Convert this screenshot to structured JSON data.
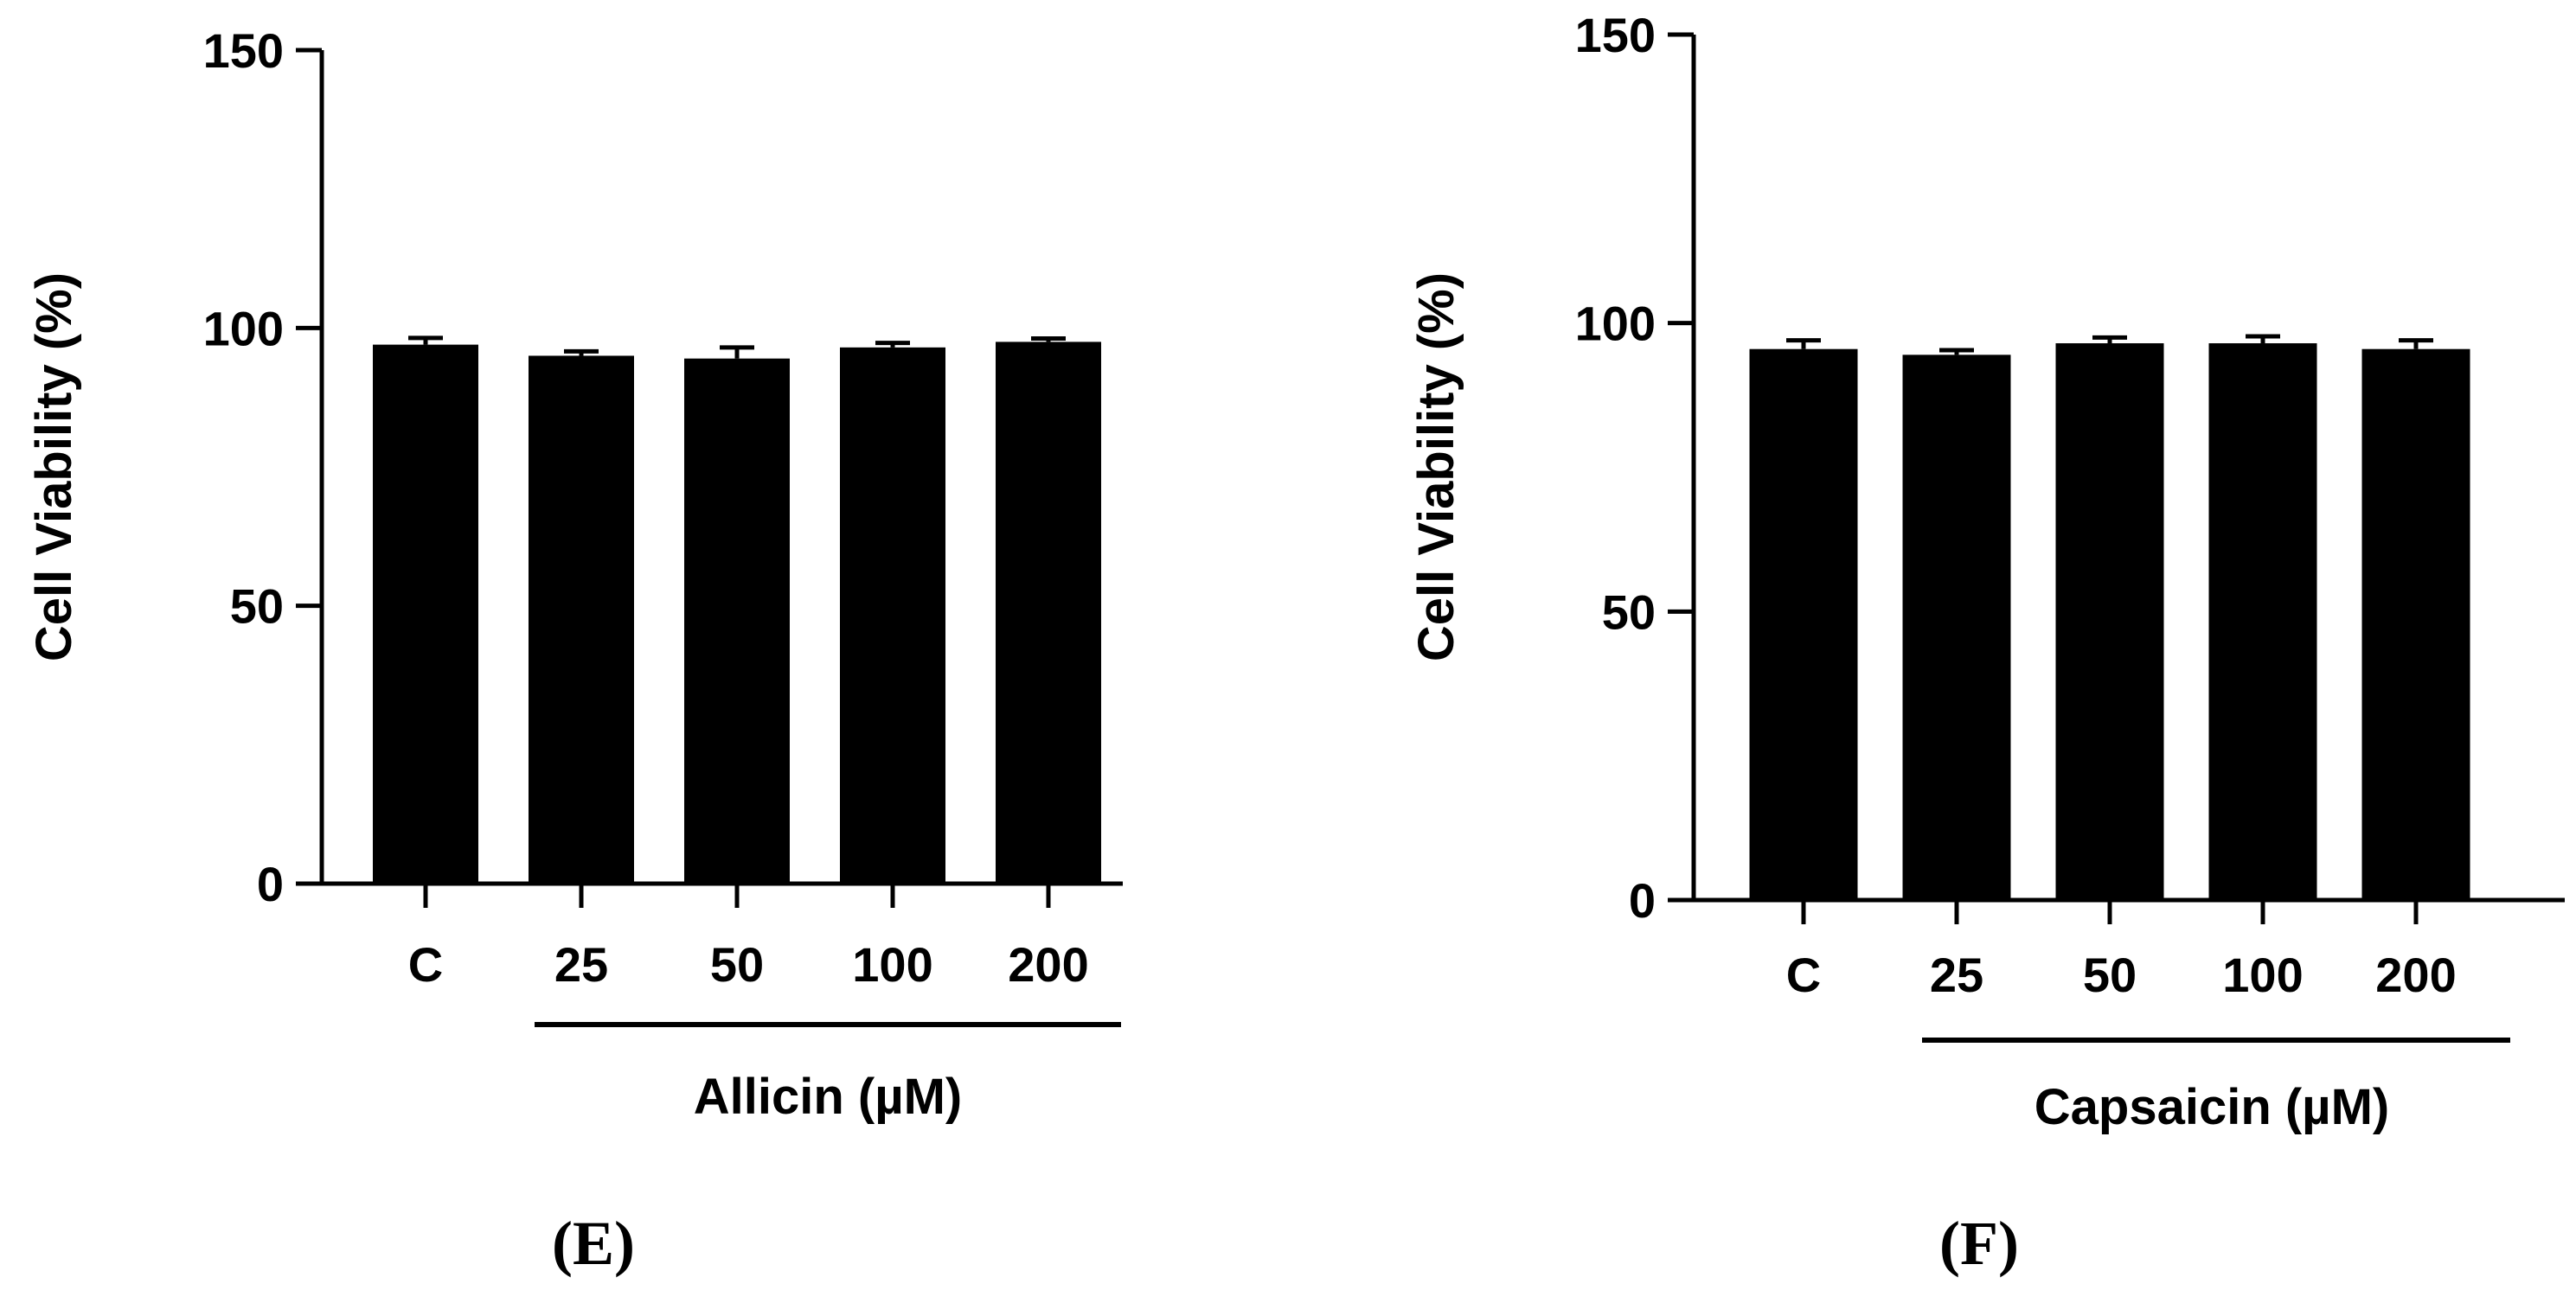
{
  "chart_data": [
    {
      "type": "bar",
      "panel_label": "(E)",
      "categories": [
        "C",
        "25",
        "50",
        "100",
        "200"
      ],
      "values": [
        97,
        95,
        94.5,
        96.5,
        97.5
      ],
      "errors": [
        1.2,
        0.8,
        2.0,
        0.8,
        0.6
      ],
      "ylabel": "Cell Viability (%)",
      "yticks": [
        "0",
        "50",
        "100",
        "150"
      ],
      "ylim": [
        0,
        150
      ],
      "group_label": "Allicin (µM)",
      "bar_color": "#000000",
      "grid": false,
      "legend": "none"
    },
    {
      "type": "bar",
      "panel_label": "(F)",
      "categories": [
        "C",
        "25",
        "50",
        "100",
        "200"
      ],
      "values": [
        95.5,
        94.5,
        96.5,
        96.5,
        95.5
      ],
      "errors": [
        1.5,
        0.8,
        1.0,
        1.2,
        1.5
      ],
      "ylabel": "Cell Viability (%)",
      "yticks": [
        "0",
        "50",
        "100",
        "150"
      ],
      "ylim": [
        0,
        150
      ],
      "group_label": "Capsaicin (µM)",
      "bar_color": "#000000",
      "grid": false,
      "legend": "none"
    }
  ]
}
